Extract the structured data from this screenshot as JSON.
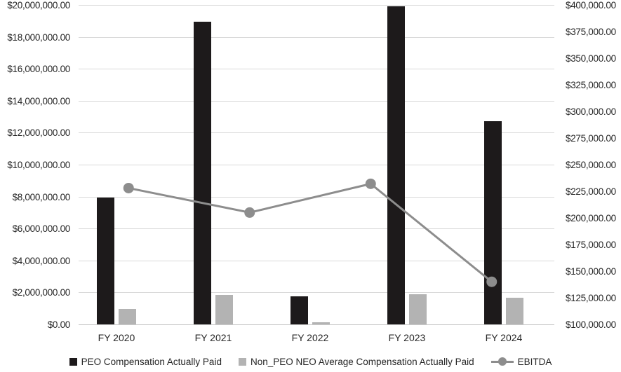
{
  "chart_data": {
    "type": "combo",
    "title": "",
    "categories": [
      "FY 2020",
      "FY 2021",
      "FY 2022",
      "FY 2023",
      "FY 2024"
    ],
    "series": [
      {
        "name": "PEO Compensation Actually Paid",
        "type": "bar",
        "axis": "left",
        "color": "#1d1a1b",
        "values": [
          7950000,
          18950000,
          1750000,
          19900000,
          12700000
        ]
      },
      {
        "name": "Non_PEO NEO Average Compensation Actually Paid",
        "type": "bar",
        "axis": "left",
        "color": "#b3b3b3",
        "values": [
          950000,
          1850000,
          150000,
          1900000,
          1650000
        ]
      },
      {
        "name": "EBITDA",
        "type": "line",
        "axis": "right",
        "color": "#8d8d8d",
        "values": [
          228000,
          205000,
          232000,
          140000
        ],
        "x_fractions": [
          0.125,
          0.375,
          0.625,
          0.875
        ]
      }
    ],
    "left_axis": {
      "min": 0,
      "max": 20000000,
      "tick_step": 2000000,
      "ticks": [
        "$20,000,000.00",
        "$18,000,000.00",
        "$16,000,000.00",
        "$14,000,000.00",
        "$12,000,000.00",
        "$10,000,000.00",
        "$8,000,000.00",
        "$6,000,000.00",
        "$4,000,000.00",
        "$2,000,000.00",
        "$0.00"
      ]
    },
    "right_axis": {
      "min": 100000,
      "max": 400000,
      "tick_step": 25000,
      "ticks": [
        "$400,000.00",
        "$375,000.00",
        "$350,000.00",
        "$325,000.00",
        "$300,000.00",
        "$275,000.00",
        "$250,000.00",
        "$225,000.00",
        "$200,000.00",
        "$175,000.00",
        "$150,000.00",
        "$125,000.00",
        "$100,000.00"
      ]
    },
    "grid": true,
    "legend_position": "bottom",
    "colors": {
      "gridline": "#d9d9d9",
      "baseline": "#c9c9c9",
      "text": "#262626",
      "background": "#ffffff"
    }
  }
}
